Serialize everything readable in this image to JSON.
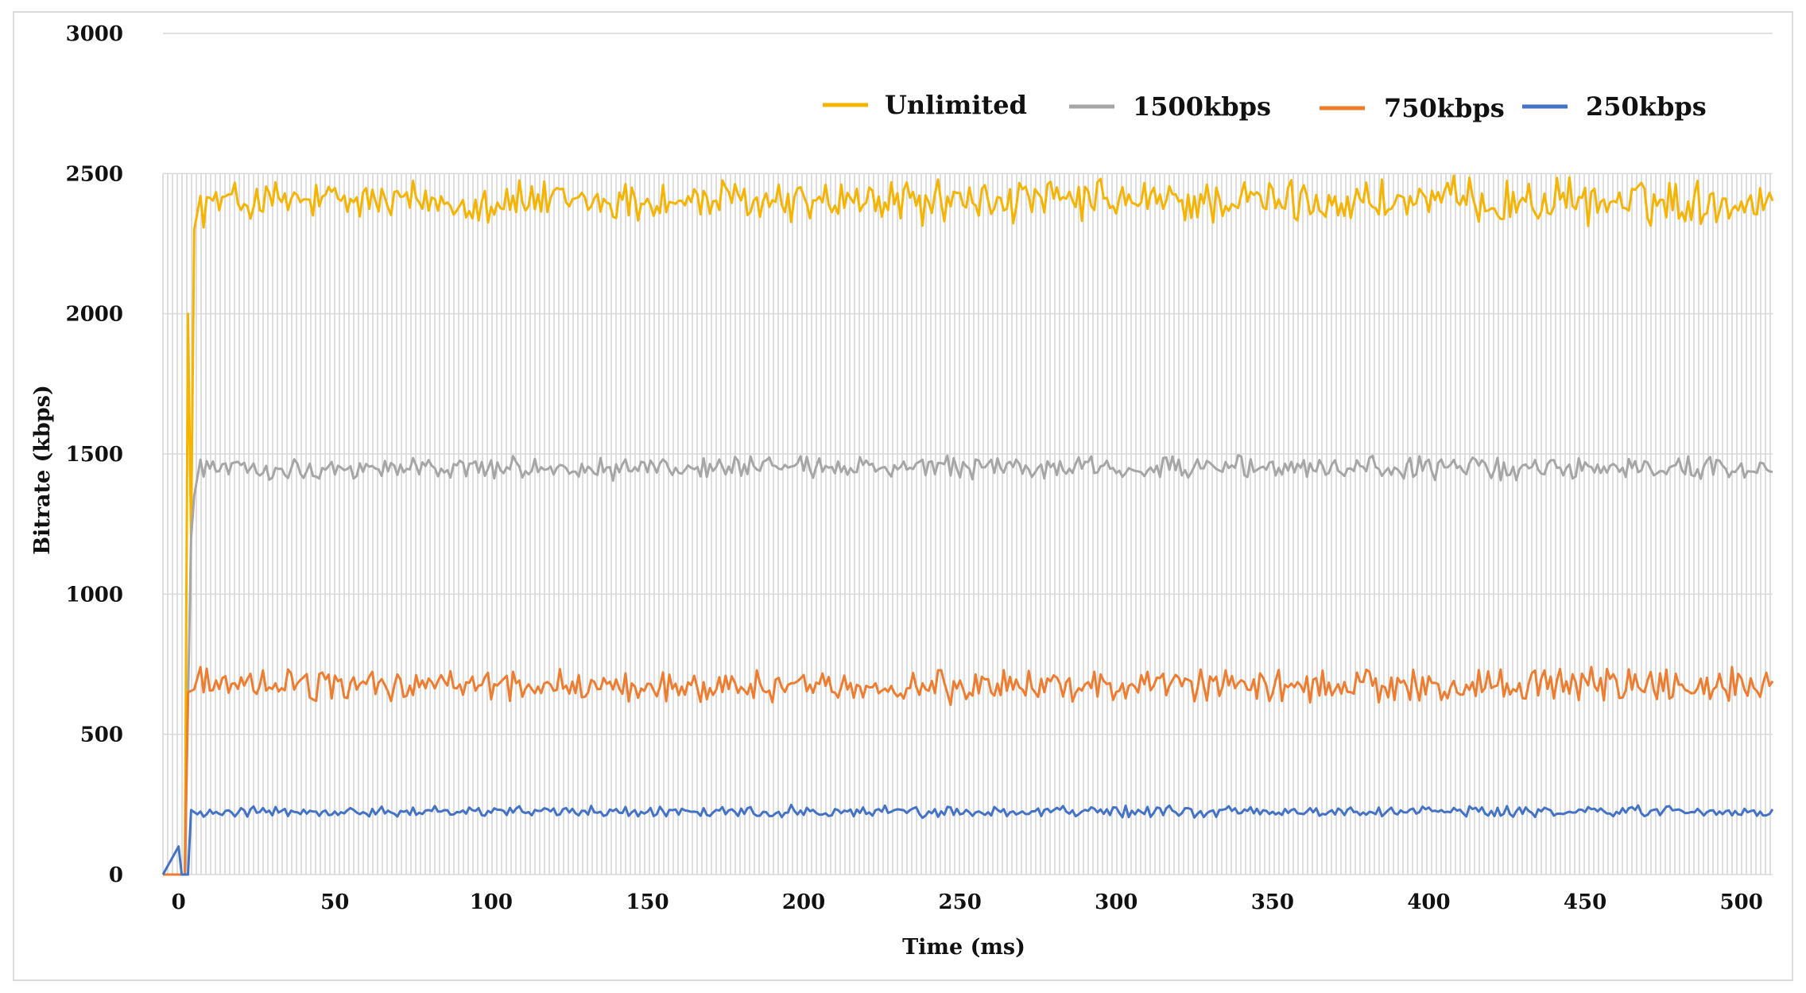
{
  "chart_data": {
    "type": "line",
    "title": "",
    "xlabel": "Time (ms)",
    "ylabel": "Bitrate (kbps)",
    "xlim": [
      -5,
      510
    ],
    "ylim": [
      0,
      3000
    ],
    "x_ticks": [
      "0",
      "50",
      "100",
      "150",
      "200",
      "250",
      "300",
      "350",
      "400",
      "450",
      "500"
    ],
    "y_ticks": [
      "0",
      "500",
      "1000",
      "1500",
      "2000",
      "2500",
      "3000"
    ],
    "grid": true,
    "legend_position": "top-right",
    "series": [
      {
        "name": "Unlimited",
        "color": "#f5b400",
        "ramp": [
          [
            -5,
            0
          ],
          [
            0,
            0
          ],
          [
            2,
            0
          ],
          [
            3,
            2000
          ],
          [
            4,
            1200
          ],
          [
            5,
            2300
          ],
          [
            7,
            2420
          ]
        ],
        "steady_mean": 2400,
        "steady_min": 2300,
        "steady_max": 2500
      },
      {
        "name": "1500kbps",
        "color": "#a6a6a6",
        "ramp": [
          [
            -5,
            0
          ],
          [
            2,
            0
          ],
          [
            4,
            1200
          ],
          [
            5,
            1350
          ],
          [
            7,
            1480
          ]
        ],
        "steady_mean": 1450,
        "steady_min": 1400,
        "steady_max": 1500
      },
      {
        "name": "750kbps",
        "color": "#ed7d31",
        "ramp": [
          [
            -5,
            0
          ],
          [
            2,
            0
          ],
          [
            3,
            650
          ],
          [
            5,
            660
          ],
          [
            7,
            740
          ]
        ],
        "steady_mean": 670,
        "steady_min": 600,
        "steady_max": 750
      },
      {
        "name": "250kbps",
        "color": "#4472c4",
        "ramp": [
          [
            -5,
            0
          ],
          [
            0,
            100
          ],
          [
            1,
            0
          ],
          [
            3,
            0
          ],
          [
            4,
            230
          ],
          [
            6,
            215
          ]
        ],
        "steady_mean": 225,
        "steady_min": 200,
        "steady_max": 250
      }
    ]
  }
}
